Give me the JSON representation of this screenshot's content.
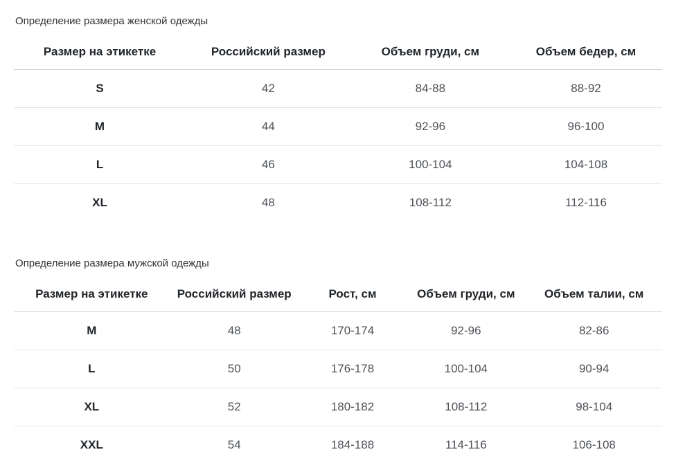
{
  "colors": {
    "background": "#ffffff",
    "title_text": "#333333",
    "header_text": "#212529",
    "cell_text": "#4d5156",
    "header_border": "#cfcfcf",
    "row_border": "#e4e4e4"
  },
  "tables": [
    {
      "title": "Определение размера женской одежды",
      "columns": [
        "Размер на этикетке",
        "Российский размер",
        "Объем груди, см",
        "Объем бедер, см"
      ],
      "col_widths": [
        "26.5%",
        "25.5%",
        "24.5%",
        "23.5%"
      ],
      "rows": [
        [
          "S",
          "42",
          "84-88",
          "88-92"
        ],
        [
          "M",
          "44",
          "92-96",
          "96-100"
        ],
        [
          "L",
          "46",
          "100-104",
          "104-108"
        ],
        [
          "XL",
          "48",
          "108-112",
          "112-116"
        ]
      ]
    },
    {
      "title": "Определение размера мужской одежды",
      "columns": [
        "Размер на этикетке",
        "Российский размер",
        "Рост, см",
        "Объем груди, см",
        "Объем талии, см"
      ],
      "col_widths": [
        "24%",
        "20%",
        "16.5%",
        "18.5%",
        "21%"
      ],
      "rows": [
        [
          "M",
          "48",
          "170-174",
          "92-96",
          "82-86"
        ],
        [
          "L",
          "50",
          "176-178",
          "100-104",
          "90-94"
        ],
        [
          "XL",
          "52",
          "180-182",
          "108-112",
          "98-104"
        ],
        [
          "XXL",
          "54",
          "184-188",
          "114-116",
          "106-108"
        ]
      ]
    }
  ]
}
